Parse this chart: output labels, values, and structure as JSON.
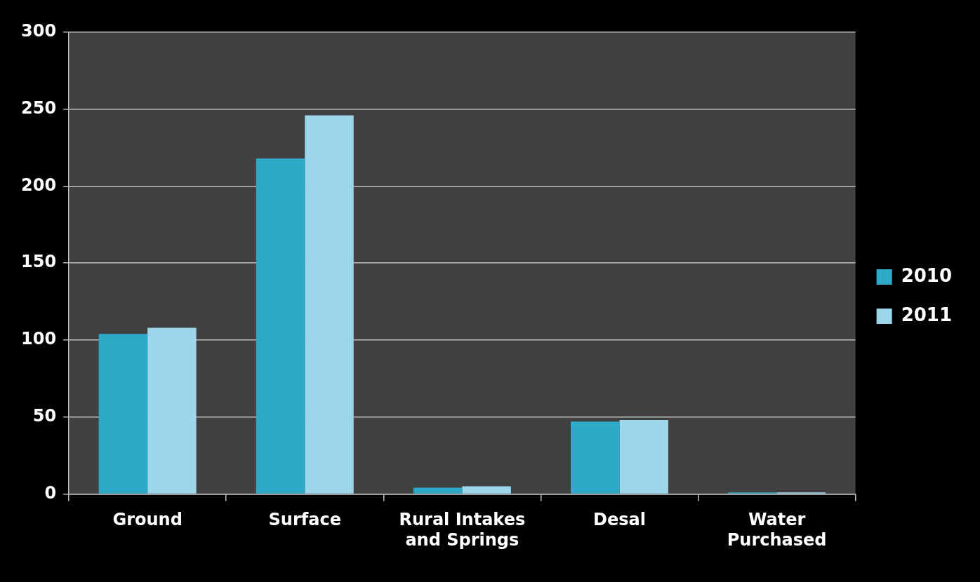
{
  "chart_data": {
    "type": "bar",
    "categories": [
      "Ground",
      "Surface",
      "Rural Intakes and Springs",
      "Desal",
      "Water Purchased"
    ],
    "series": [
      {
        "name": "2010",
        "color": "#2fa9c8",
        "values": [
          104,
          218,
          4,
          47,
          1
        ]
      },
      {
        "name": "2011",
        "color": "#9dd6ea",
        "values": [
          108,
          246,
          5,
          48,
          1
        ]
      }
    ],
    "ylim": [
      0,
      300
    ],
    "yticks": [
      0,
      50,
      100,
      150,
      200,
      250,
      300
    ],
    "grid": "y",
    "legend": "right"
  }
}
